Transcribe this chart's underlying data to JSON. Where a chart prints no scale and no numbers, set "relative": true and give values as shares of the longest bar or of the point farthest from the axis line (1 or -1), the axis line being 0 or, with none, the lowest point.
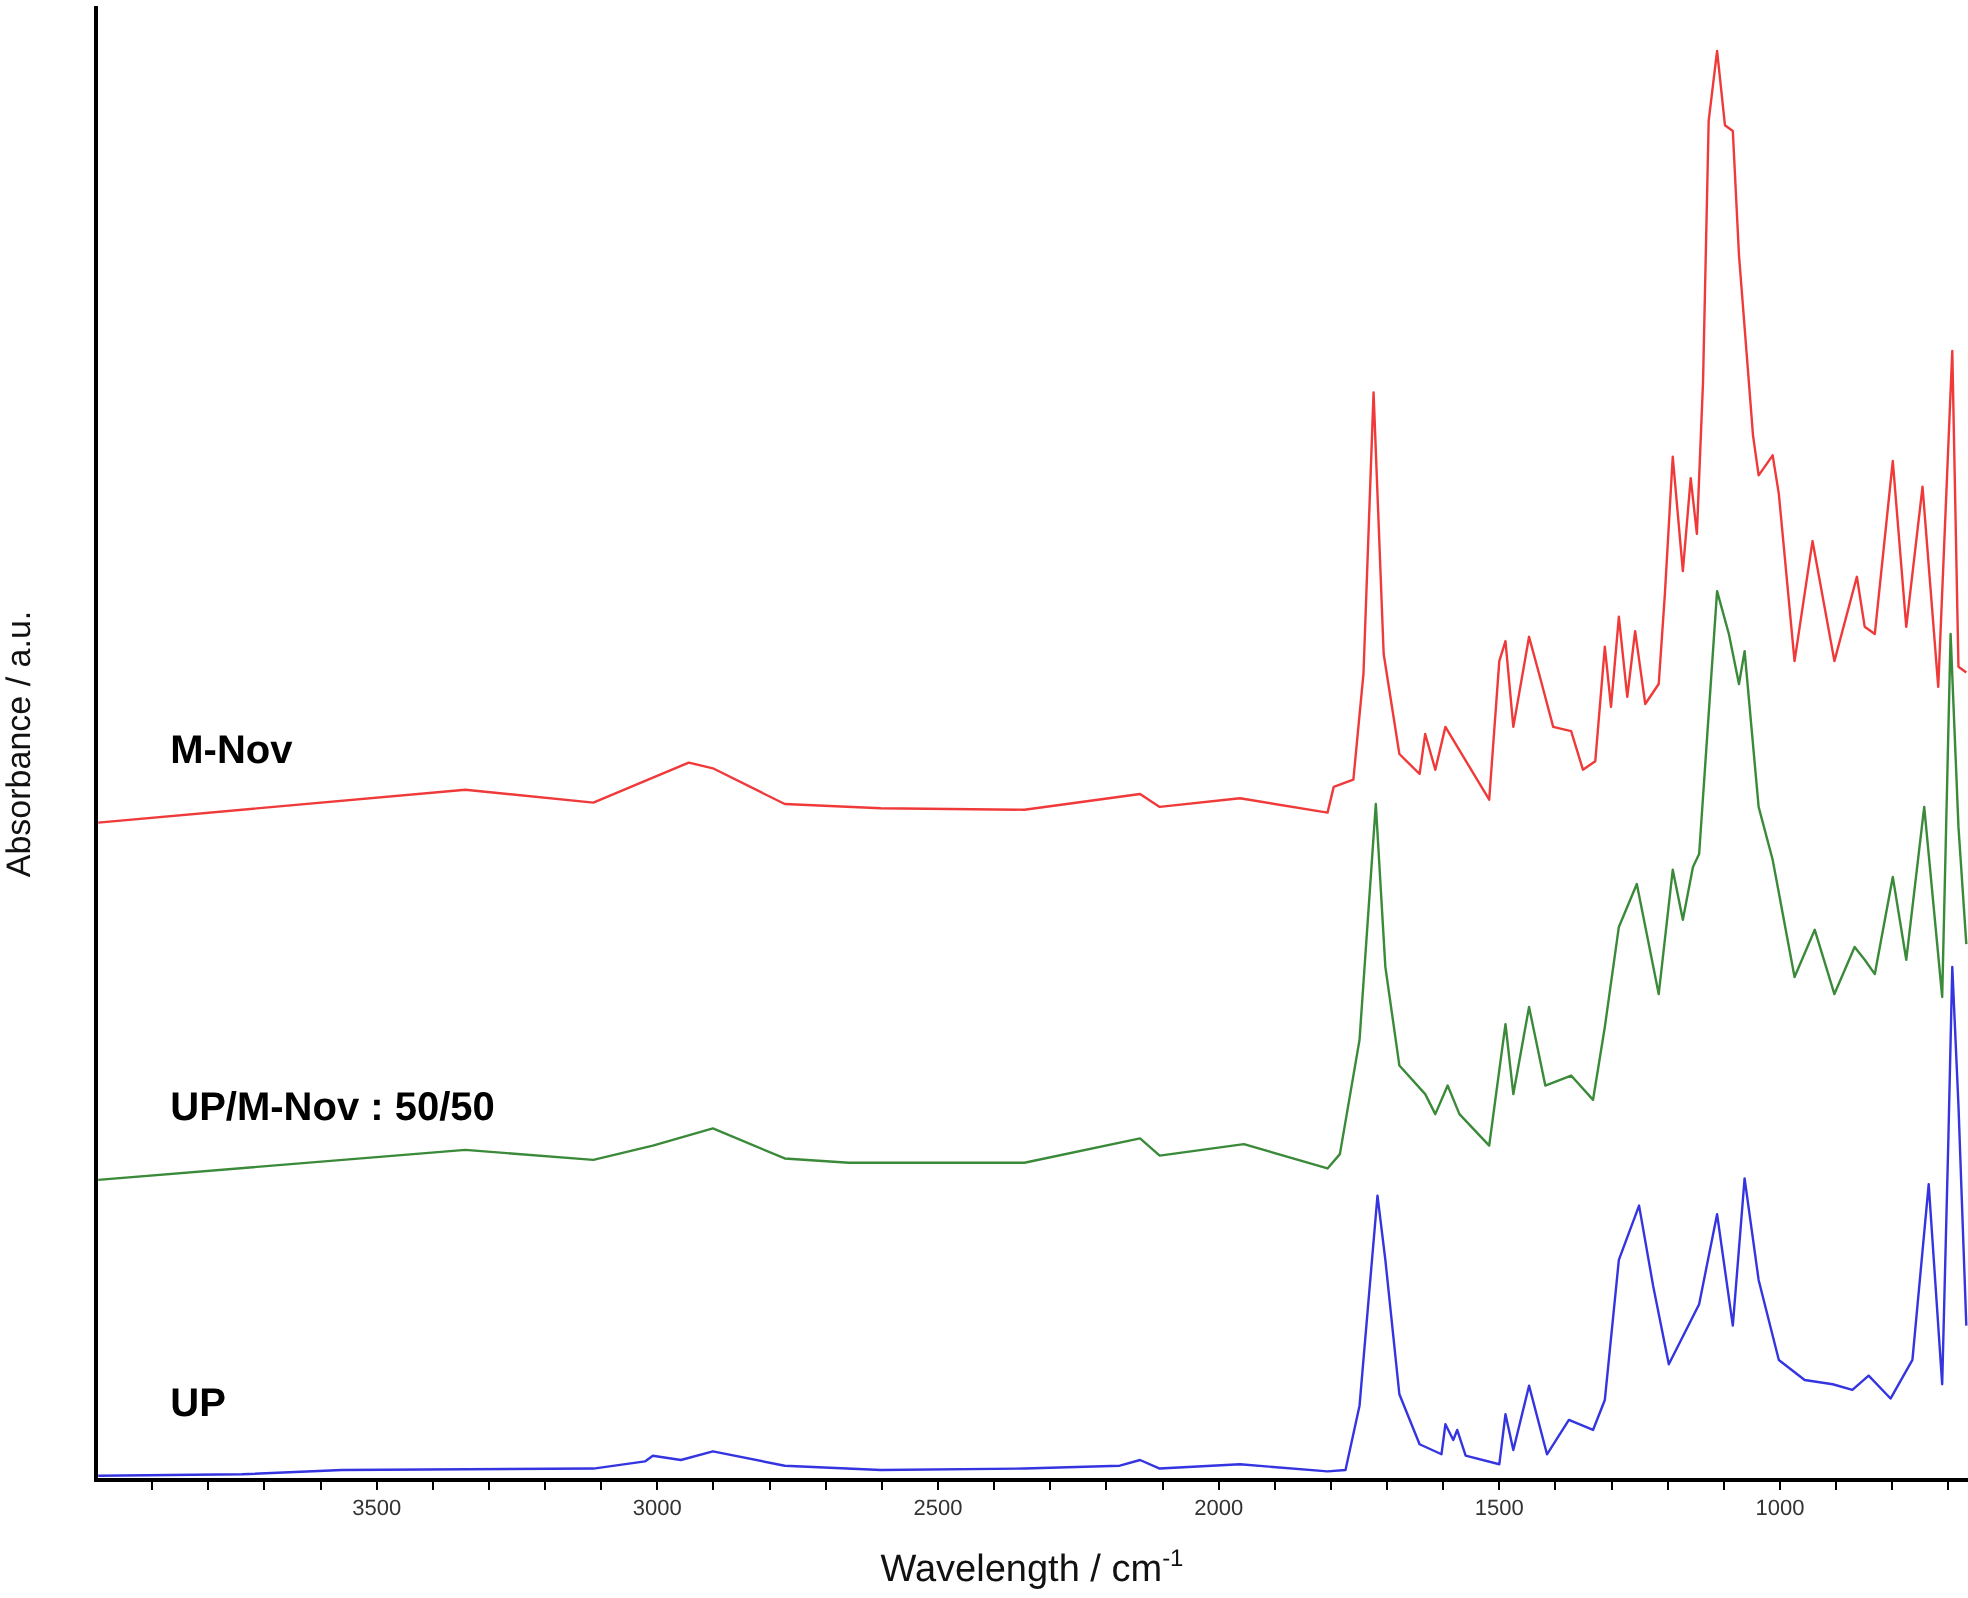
{
  "chart_data": {
    "type": "line",
    "xlabel": "Wavelength / cm$^{-1}$",
    "ylabel": "Absorbance / a.u.",
    "relative": true,
    "legend": false,
    "marker": "none",
    "line_style": "solid",
    "xlim": [
      4000,
      665
    ],
    "xticks": [
      {
        "value": 3900,
        "label": null
      },
      {
        "value": 3800,
        "label": null
      },
      {
        "value": 3700,
        "label": null
      },
      {
        "value": 3600,
        "label": null
      },
      3500,
      {
        "value": 3400,
        "label": null
      },
      {
        "value": 3300,
        "label": null
      },
      {
        "value": 3200,
        "label": null
      },
      {
        "value": 3100,
        "label": null
      },
      3000,
      {
        "value": 2900,
        "label": null
      },
      {
        "value": 2800,
        "label": null
      },
      {
        "value": 2700,
        "label": null
      },
      {
        "value": 2600,
        "label": null
      },
      2500,
      {
        "value": 2400,
        "label": null
      },
      {
        "value": 2300,
        "label": null
      },
      {
        "value": 2200,
        "label": null
      },
      {
        "value": 2100,
        "label": null
      },
      2000,
      {
        "value": 1900,
        "label": null
      },
      {
        "value": 1800,
        "label": null
      },
      {
        "value": 1700,
        "label": null
      },
      {
        "value": 1600,
        "label": null
      },
      1500,
      {
        "value": 1400,
        "label": null
      },
      {
        "value": 1300,
        "label": null
      },
      {
        "value": 1200,
        "label": null
      },
      {
        "value": 1100,
        "label": null
      },
      1000,
      {
        "value": 900,
        "label": null
      },
      {
        "value": 800,
        "label": null
      },
      {
        "value": 700,
        "label": null
      }
    ],
    "series": [
      {
        "name": "M-Nov",
        "color": "#f03a3a",
        "x": [
          3996,
          3342,
          3114,
          2944,
          2901,
          2773,
          2602,
          2346,
          2140,
          2105,
          1962,
          1806,
          1795,
          1760,
          1742,
          1724,
          1706,
          1678,
          1642,
          1632,
          1614,
          1596,
          1518,
          1500,
          1489,
          1475,
          1447,
          1429,
          1404,
          1372,
          1351,
          1329,
          1312,
          1301,
          1287,
          1272,
          1258,
          1240,
          1216,
          1205,
          1191,
          1173,
          1159,
          1148,
          1137,
          1127,
          1112,
          1098,
          1084,
          1073,
          1048,
          1038,
          1013,
          1002,
          974,
          942,
          903,
          863,
          849,
          831,
          799,
          775,
          746,
          718,
          693,
          682,
          668
        ],
        "values": [
          0.46,
          0.483,
          0.474,
          0.502,
          0.498,
          0.473,
          0.47,
          0.469,
          0.48,
          0.471,
          0.477,
          0.467,
          0.485,
          0.49,
          0.564,
          0.761,
          0.578,
          0.508,
          0.494,
          0.522,
          0.497,
          0.527,
          0.476,
          0.573,
          0.587,
          0.527,
          0.59,
          0.564,
          0.527,
          0.524,
          0.497,
          0.503,
          0.583,
          0.541,
          0.604,
          0.548,
          0.594,
          0.543,
          0.557,
          0.62,
          0.716,
          0.636,
          0.701,
          0.662,
          0.769,
          0.951,
          1,
          0.948,
          0.944,
          0.857,
          0.731,
          0.703,
          0.717,
          0.69,
          0.573,
          0.657,
          0.573,
          0.632,
          0.597,
          0.592,
          0.713,
          0.597,
          0.695,
          0.555,
          0.79,
          0.569,
          0.565
        ]
      },
      {
        "name": "UP/M-Nov : 50/50",
        "color": "#3a8a3a",
        "x": [
          3996,
          3342,
          3114,
          3008,
          2901,
          2773,
          2659,
          2346,
          2140,
          2105,
          1955,
          1806,
          1784,
          1749,
          1720,
          1703,
          1678,
          1632,
          1614,
          1592,
          1571,
          1518,
          1489,
          1475,
          1447,
          1418,
          1372,
          1333,
          1312,
          1287,
          1255,
          1216,
          1191,
          1173,
          1155,
          1144,
          1112,
          1091,
          1073,
          1063,
          1038,
          1013,
          974,
          938,
          903,
          867,
          849,
          831,
          799,
          775,
          743,
          711,
          696,
          682,
          668
        ],
        "values": [
          0.21,
          0.231,
          0.224,
          0.234,
          0.246,
          0.225,
          0.222,
          0.222,
          0.239,
          0.227,
          0.235,
          0.218,
          0.228,
          0.308,
          0.473,
          0.359,
          0.29,
          0.27,
          0.256,
          0.276,
          0.256,
          0.234,
          0.319,
          0.27,
          0.331,
          0.276,
          0.283,
          0.266,
          0.317,
          0.387,
          0.417,
          0.34,
          0.427,
          0.392,
          0.429,
          0.438,
          0.622,
          0.592,
          0.557,
          0.58,
          0.471,
          0.434,
          0.352,
          0.385,
          0.34,
          0.373,
          0.364,
          0.354,
          0.422,
          0.364,
          0.471,
          0.338,
          0.592,
          0.457,
          0.375
        ]
      },
      {
        "name": "UP",
        "color": "#3434e0",
        "x": [
          3996,
          3740,
          3562,
          3114,
          3022,
          3008,
          2958,
          2901,
          2773,
          2602,
          2346,
          2176,
          2140,
          2105,
          1962,
          1806,
          1774,
          1749,
          1717,
          1703,
          1678,
          1642,
          1603,
          1596,
          1582,
          1575,
          1560,
          1500,
          1489,
          1475,
          1447,
          1415,
          1376,
          1333,
          1312,
          1287,
          1251,
          1226,
          1198,
          1144,
          1112,
          1084,
          1063,
          1038,
          1002,
          956,
          906,
          871,
          842,
          803,
          764,
          735,
          711,
          700,
          693,
          682,
          668
        ],
        "values": [
          0.003,
          0.004,
          0.007,
          0.008,
          0.013,
          0.017,
          0.014,
          0.02,
          0.01,
          0.007,
          0.008,
          0.01,
          0.014,
          0.008,
          0.011,
          0.006,
          0.007,
          0.052,
          0.199,
          0.154,
          0.06,
          0.025,
          0.018,
          0.039,
          0.028,
          0.035,
          0.017,
          0.011,
          0.046,
          0.021,
          0.066,
          0.018,
          0.042,
          0.035,
          0.056,
          0.154,
          0.192,
          0.136,
          0.081,
          0.123,
          0.186,
          0.108,
          0.211,
          0.14,
          0.084,
          0.07,
          0.067,
          0.063,
          0.073,
          0.057,
          0.084,
          0.207,
          0.067,
          0.238,
          0.359,
          0.262,
          0.108
        ]
      }
    ]
  }
}
